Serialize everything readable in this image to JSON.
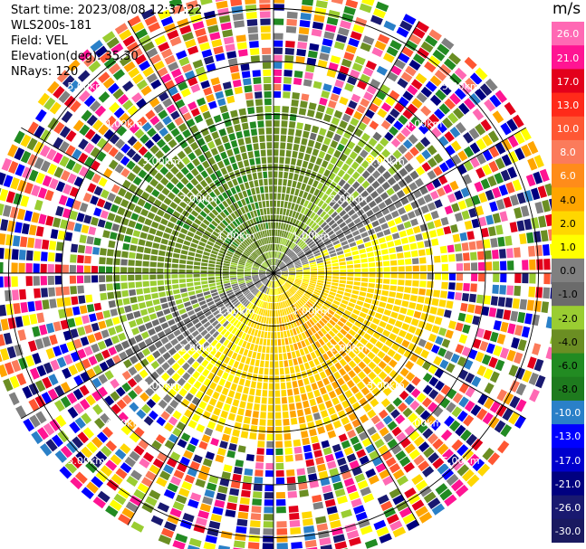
{
  "info": {
    "start_time": "Start time: 2023/08/08 12:37:22",
    "instrument": "WLS200s-181",
    "field": "Field: VEL",
    "elevation": "Elevation(deg): 35.30",
    "nrays": "NRays: 120"
  },
  "colorbar": {
    "unit": "m/s",
    "ticks": [
      "26.0",
      "21.0",
      "17.0",
      "13.0",
      "10.0",
      "8.0",
      "6.0",
      "4.0",
      "2.0",
      "1.0",
      "0.0",
      "-1.0",
      "-2.0",
      "-4.0",
      "-6.0",
      "-8.0",
      "-10.0",
      "-13.0",
      "-17.0",
      "-21.0",
      "-26.0",
      "-30.0"
    ],
    "colors": [
      "#ff69b4",
      "#ff1493",
      "#e3001b",
      "#ff2a1a",
      "#ff5733",
      "#fb7b5b",
      "#ff8c1a",
      "#ffa500",
      "#ffd700",
      "#ffff00",
      "#808080",
      "#6b6b6b",
      "#9acd32",
      "#6b8e23",
      "#228b22",
      "#1e7b1e",
      "#2a80c8",
      "#0000ff",
      "#0000cd",
      "#000080",
      "#191970",
      "#1a1a60"
    ]
  },
  "chart_data": {
    "type": "ppi",
    "field": "VEL",
    "units": "m/s",
    "nrays": 120,
    "range_rings_km": [
      1.0,
      2.0,
      3.0,
      4.0,
      5.0
    ],
    "ring_labels": [
      "1.00km",
      "2.00km",
      "3.00km",
      "4.00km",
      "5.00km"
    ],
    "max_range_km": 5.5,
    "color_scale_range": [
      -30.0,
      26.0
    ]
  }
}
